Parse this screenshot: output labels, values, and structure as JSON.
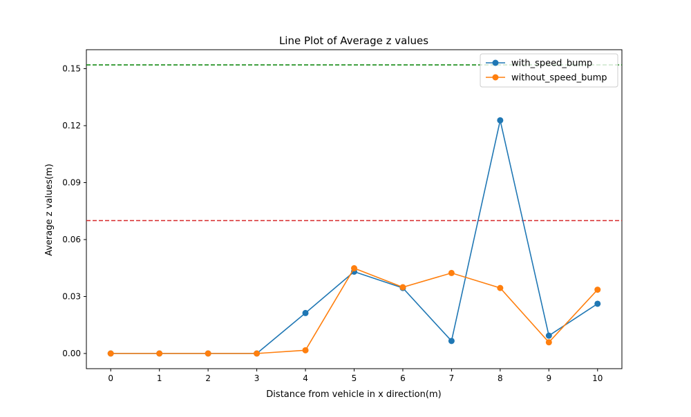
{
  "chart_data": {
    "type": "line",
    "title": "Line Plot of Average z values",
    "xlabel": "Distance from vehicle in x direction(m)",
    "ylabel": "Average z values(m)",
    "x": [
      0,
      1,
      2,
      3,
      4,
      5,
      6,
      7,
      8,
      9,
      10
    ],
    "x_ticks": [
      "0",
      "1",
      "2",
      "3",
      "4",
      "5",
      "6",
      "7",
      "8",
      "9",
      "10"
    ],
    "y_ticks": [
      "0.00",
      "0.03",
      "0.06",
      "0.09",
      "0.12",
      "0.15"
    ],
    "y_tick_values": [
      0.0,
      0.03,
      0.06,
      0.09,
      0.12,
      0.15
    ],
    "xlim": [
      -0.5,
      10.5
    ],
    "ylim": [
      -0.008,
      0.16
    ],
    "grid": false,
    "legend_position": "top-right",
    "series": [
      {
        "name": "with_speed_bump",
        "color": "#1f77b4",
        "marker": "circle",
        "values": [
          0.0,
          0.0,
          0.0,
          0.0,
          0.0213,
          0.0431,
          0.0345,
          0.0066,
          0.1228,
          0.0094,
          0.0262
        ]
      },
      {
        "name": "without_speed_bump",
        "color": "#ff7f0e",
        "marker": "circle",
        "values": [
          0.0,
          0.0,
          0.0,
          0.0,
          0.0017,
          0.0449,
          0.0349,
          0.0424,
          0.0345,
          0.0059,
          0.0336
        ]
      }
    ],
    "reference_lines": [
      {
        "y": 0.152,
        "color": "#008000",
        "style": "dashed"
      },
      {
        "y": 0.07,
        "color": "#d62728",
        "style": "dashed"
      }
    ]
  }
}
